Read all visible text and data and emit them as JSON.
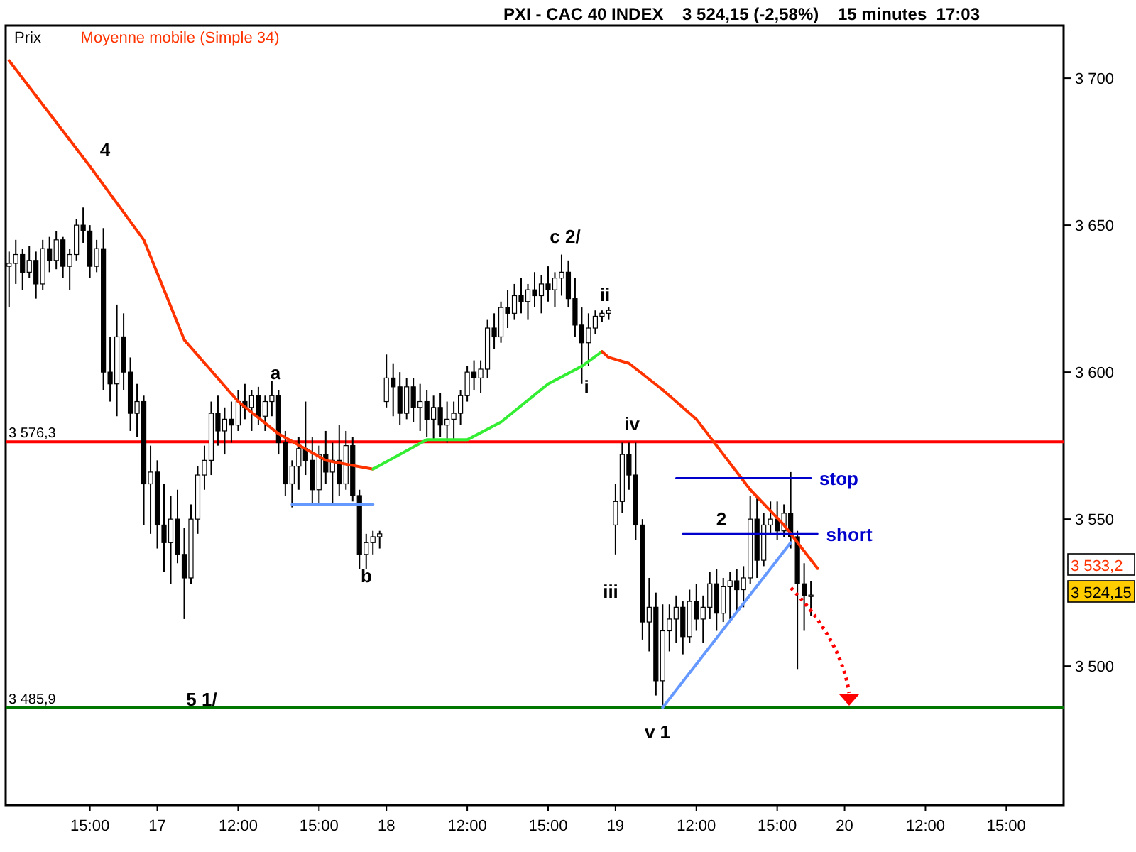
{
  "chart_data": {
    "type": "candlestick",
    "title": "PXI - CAC 40 INDEX    3 524,15 (-2,58%)    15 minutes  17:03",
    "legend": "top left",
    "categories": [
      null,
      null,
      null,
      null,
      null,
      null,
      null,
      null,
      null,
      null,
      null,
      null,
      "15:00",
      null,
      null,
      null,
      null,
      null,
      null,
      null,
      null,
      null,
      "17",
      null,
      null,
      null,
      null,
      null,
      null,
      null,
      null,
      null,
      null,
      null,
      "12:00",
      null,
      null,
      null,
      null,
      null,
      null,
      null,
      null,
      null,
      null,
      null,
      "15:00",
      null,
      null,
      null,
      null,
      null,
      null,
      null,
      null,
      null,
      "18",
      null,
      null,
      null,
      null,
      null,
      null,
      null,
      null,
      null,
      null,
      null,
      "12:00",
      null,
      null,
      null,
      null,
      null,
      null,
      null,
      null,
      null,
      null,
      null,
      "15:00",
      null,
      null,
      null,
      null,
      null,
      null,
      null,
      null,
      null,
      "19",
      null,
      null,
      null,
      null,
      null,
      null,
      null,
      null,
      null,
      null,
      null,
      "12:00",
      null,
      null,
      null,
      null,
      null,
      null,
      null,
      null,
      null,
      null,
      null,
      "15:00",
      null,
      null,
      null,
      null,
      null,
      null,
      null,
      null,
      null,
      "20",
      null,
      null,
      null,
      null,
      null,
      null,
      null,
      null,
      null,
      null,
      null,
      "12:00",
      null,
      null,
      null,
      null,
      null,
      null,
      null,
      null,
      null,
      null,
      null,
      "15:00",
      null,
      null,
      null,
      null,
      null,
      null,
      null,
      null
    ],
    "ylim": [
      3452.7,
      3717.9
    ],
    "yticks": [
      {
        "value": 3500,
        "label": "3 500"
      },
      {
        "value": 3550,
        "label": "3 550"
      },
      {
        "value": 3600,
        "label": "3 600"
      },
      {
        "value": 3650,
        "label": "3 650"
      },
      {
        "value": 3700,
        "label": "3 700"
      }
    ],
    "ref_lines": [
      {
        "axis": "y",
        "value": 3576.3,
        "label": "3 576,3",
        "color": "#ff0000"
      },
      {
        "axis": "y",
        "value": 3485.9,
        "label": "3 485,9",
        "color": "#007700"
      }
    ],
    "series": [
      {
        "name": "Prix",
        "color": "#000000",
        "ohlc": [
          [
            3636,
            3641,
            3622,
            3637
          ],
          [
            3637,
            3645,
            3630,
            3640
          ],
          [
            3640,
            3642,
            3628,
            3634
          ],
          [
            3634,
            3643,
            3632,
            3638
          ],
          [
            3638,
            3641,
            3625,
            3630
          ],
          [
            3630,
            3645,
            3628,
            3642
          ],
          [
            3642,
            3646,
            3634,
            3638
          ],
          [
            3638,
            3648,
            3635,
            3645
          ],
          [
            3645,
            3646,
            3632,
            3636
          ],
          [
            3636,
            3642,
            3628,
            3640
          ],
          [
            3640,
            3652,
            3638,
            3650
          ],
          [
            3650,
            3656,
            3644,
            3648
          ],
          [
            3648,
            3650,
            3632,
            3636
          ],
          [
            3636,
            3645,
            3634,
            3642
          ],
          [
            3642,
            3649,
            3594,
            3600
          ],
          [
            3600,
            3612,
            3590,
            3596
          ],
          [
            3596,
            3623,
            3585,
            3612
          ],
          [
            3612,
            3620,
            3594,
            3600
          ],
          [
            3600,
            3605,
            3580,
            3586
          ],
          [
            3586,
            3596,
            3578,
            3590
          ],
          [
            3590,
            3592,
            3548,
            3562
          ],
          [
            3562,
            3575,
            3545,
            3566
          ],
          [
            3566,
            3570,
            3540,
            3548
          ],
          [
            3548,
            3562,
            3532,
            3542
          ],
          [
            3542,
            3558,
            3528,
            3550
          ],
          [
            3550,
            3560,
            3535,
            3538
          ],
          [
            3538,
            3547,
            3516,
            3530
          ],
          [
            3530,
            3555,
            3528,
            3550
          ],
          [
            3550,
            3568,
            3545,
            3565
          ],
          [
            3565,
            3575,
            3560,
            3570
          ],
          [
            3570,
            3590,
            3565,
            3586
          ],
          [
            3586,
            3592,
            3575,
            3580
          ],
          [
            3580,
            3588,
            3572,
            3584
          ],
          [
            3584,
            3590,
            3576,
            3582
          ],
          [
            3582,
            3594,
            3580,
            3590
          ],
          [
            3590,
            3596,
            3584,
            3588
          ],
          [
            3588,
            3594,
            3580,
            3592
          ],
          [
            3592,
            3595,
            3582,
            3585
          ],
          [
            3585,
            3592,
            3580,
            3590
          ],
          [
            3590,
            3597,
            3585,
            3592
          ],
          [
            3592,
            3594,
            3572,
            3576
          ],
          [
            3576,
            3580,
            3558,
            3562
          ],
          [
            3562,
            3570,
            3554,
            3568
          ],
          [
            3568,
            3578,
            3560,
            3574
          ],
          [
            3574,
            3590,
            3565,
            3570
          ],
          [
            3570,
            3578,
            3555,
            3560
          ],
          [
            3560,
            3575,
            3555,
            3572
          ],
          [
            3572,
            3580,
            3562,
            3566
          ],
          [
            3566,
            3576,
            3555,
            3570
          ],
          [
            3570,
            3582,
            3558,
            3562
          ],
          [
            3562,
            3580,
            3560,
            3575
          ],
          [
            3575,
            3578,
            3556,
            3558
          ],
          [
            3558,
            3560,
            3533,
            3538
          ],
          [
            3538,
            3545,
            3533,
            3542
          ],
          [
            3542,
            3546,
            3538,
            3544
          ],
          [
            3544,
            3546,
            3540,
            3545
          ],
          [
            3590,
            3606,
            3588,
            3598
          ],
          [
            3598,
            3603,
            3585,
            3595
          ],
          [
            3595,
            3600,
            3582,
            3586
          ],
          [
            3586,
            3598,
            3584,
            3595
          ],
          [
            3595,
            3598,
            3583,
            3588
          ],
          [
            3588,
            3596,
            3580,
            3590
          ],
          [
            3590,
            3594,
            3578,
            3584
          ],
          [
            3584,
            3592,
            3577,
            3588
          ],
          [
            3588,
            3593,
            3578,
            3582
          ],
          [
            3582,
            3590,
            3576,
            3584
          ],
          [
            3584,
            3590,
            3577,
            3586
          ],
          [
            3586,
            3594,
            3582,
            3592
          ],
          [
            3592,
            3602,
            3590,
            3600
          ],
          [
            3600,
            3604,
            3594,
            3598
          ],
          [
            3598,
            3604,
            3593,
            3601
          ],
          [
            3601,
            3618,
            3598,
            3615
          ],
          [
            3615,
            3620,
            3608,
            3612
          ],
          [
            3612,
            3624,
            3610,
            3622
          ],
          [
            3622,
            3628,
            3615,
            3620
          ],
          [
            3620,
            3630,
            3618,
            3626
          ],
          [
            3626,
            3632,
            3620,
            3624
          ],
          [
            3624,
            3630,
            3618,
            3628
          ],
          [
            3628,
            3634,
            3622,
            3626
          ],
          [
            3626,
            3633,
            3620,
            3630
          ],
          [
            3630,
            3636,
            3624,
            3628
          ],
          [
            3628,
            3634,
            3622,
            3632
          ],
          [
            3632,
            3640,
            3626,
            3634
          ],
          [
            3634,
            3638,
            3622,
            3625
          ],
          [
            3625,
            3632,
            3612,
            3616
          ],
          [
            3616,
            3622,
            3596,
            3610
          ],
          [
            3610,
            3620,
            3602,
            3615
          ],
          [
            3615,
            3621,
            3613,
            3619
          ],
          [
            3619,
            3621,
            3617,
            3620
          ],
          [
            3620,
            3622,
            3618,
            3621
          ],
          [
            3548,
            3562,
            3538,
            3556
          ],
          [
            3556,
            3576,
            3552,
            3572
          ],
          [
            3572,
            3576,
            3560,
            3565
          ],
          [
            3565,
            3576,
            3543,
            3548
          ],
          [
            3548,
            3550,
            3509,
            3515
          ],
          [
            3515,
            3530,
            3505,
            3520
          ],
          [
            3520,
            3525,
            3490,
            3495
          ],
          [
            3495,
            3521,
            3486,
            3512
          ],
          [
            3512,
            3521,
            3505,
            3516
          ],
          [
            3516,
            3524,
            3508,
            3520
          ],
          [
            3520,
            3522,
            3504,
            3510
          ],
          [
            3510,
            3526,
            3508,
            3522
          ],
          [
            3522,
            3528,
            3512,
            3516
          ],
          [
            3516,
            3524,
            3508,
            3520
          ],
          [
            3520,
            3532,
            3516,
            3528
          ],
          [
            3528,
            3533,
            3512,
            3518
          ],
          [
            3518,
            3530,
            3515,
            3527
          ],
          [
            3527,
            3532,
            3516,
            3529
          ],
          [
            3529,
            3533,
            3518,
            3526
          ],
          [
            3526,
            3534,
            3520,
            3530
          ],
          [
            3530,
            3558,
            3528,
            3550
          ],
          [
            3550,
            3557,
            3530,
            3536
          ],
          [
            3536,
            3552,
            3534,
            3548
          ],
          [
            3548,
            3556,
            3545,
            3550
          ],
          [
            3550,
            3556,
            3543,
            3546
          ],
          [
            3546,
            3555,
            3544,
            3552
          ],
          [
            3552,
            3566,
            3540,
            3544
          ],
          [
            3544,
            3546,
            3499,
            3528
          ],
          [
            3528,
            3535,
            3512,
            3524
          ],
          [
            3524,
            3529,
            3517,
            3524.15
          ],
          null,
          null,
          null,
          null,
          null,
          null,
          null,
          null,
          null,
          null,
          null,
          null,
          null,
          null,
          null,
          null,
          null,
          null,
          null,
          null,
          null,
          null,
          null,
          null,
          null,
          null,
          null,
          null,
          null,
          null,
          null,
          null,
          null,
          null,
          null,
          null,
          null
        ]
      },
      {
        "name": "Moyenne mobile (Simple 34)",
        "type": "line",
        "color": "#ff3300",
        "values": [
          3706,
          null,
          null,
          null,
          null,
          null,
          null,
          null,
          null,
          null,
          null,
          null,
          3670,
          null,
          null,
          null,
          null,
          null,
          null,
          null,
          3645,
          null,
          null,
          null,
          null,
          null,
          3611,
          null,
          null,
          null,
          null,
          null,
          null,
          null,
          3590,
          null,
          null,
          null,
          null,
          null,
          3579,
          null,
          null,
          null,
          null,
          null,
          null,
          3570,
          null,
          null,
          null,
          null,
          null,
          null,
          3567,
          null,
          null,
          null,
          null,
          null,
          null,
          null,
          null,
          null,
          null,
          null,
          null,
          null,
          null,
          null,
          null,
          null,
          null,
          null,
          null,
          null,
          null,
          null,
          null,
          null,
          null,
          null,
          null,
          null,
          null,
          null,
          null,
          null,
          null,
          null,
          null,
          null,
          null,
          null,
          null,
          null,
          null,
          null,
          null,
          null,
          null,
          null,
          null,
          null,
          null,
          null,
          null,
          null,
          null,
          null,
          null,
          null,
          null,
          null,
          null,
          null,
          null,
          null,
          null,
          null,
          null,
          null,
          null,
          null,
          null,
          null,
          null,
          null,
          null,
          null,
          null,
          null,
          null,
          null,
          null,
          null,
          null,
          null,
          null,
          null,
          null,
          null,
          null,
          null,
          null,
          null,
          null,
          null,
          null,
          null,
          null,
          null,
          null,
          null,
          null,
          null,
          null
        ]
      },
      {
        "type": "line",
        "color": "#33ee33",
        "values": [
          null,
          null,
          null,
          null,
          null,
          null,
          null,
          null,
          null,
          null,
          null,
          null,
          null,
          null,
          null,
          null,
          null,
          null,
          null,
          null,
          null,
          null,
          null,
          null,
          null,
          null,
          null,
          null,
          null,
          null,
          null,
          null,
          null,
          null,
          null,
          null,
          null,
          null,
          null,
          null,
          null,
          null,
          null,
          null,
          null,
          null,
          null,
          null,
          null,
          null,
          null,
          null,
          null,
          null,
          3567,
          null,
          null,
          null,
          null,
          null,
          null,
          null,
          3577,
          null,
          null,
          null,
          null,
          null,
          3577,
          null,
          null,
          null,
          null,
          3583,
          null,
          null,
          null,
          null,
          null,
          null,
          3596,
          null,
          null,
          null,
          null,
          3602,
          null,
          null,
          3607,
          null,
          null,
          null,
          null,
          null,
          null,
          null,
          null,
          null,
          null,
          null,
          null,
          null,
          null,
          null,
          null,
          null,
          null,
          null,
          null,
          null,
          null,
          null,
          null,
          null,
          null,
          null,
          null,
          null,
          null,
          null,
          null,
          null,
          null,
          null,
          null,
          null,
          null,
          null,
          null,
          null,
          null,
          null,
          null,
          null,
          null,
          null,
          null,
          null,
          null,
          null,
          null,
          null,
          null,
          null,
          null,
          null,
          null,
          null,
          null,
          null,
          null,
          null,
          null,
          null,
          null,
          null,
          null
        ]
      },
      {
        "type": "line",
        "color": "#ff3300",
        "values": [
          null,
          null,
          null,
          null,
          null,
          null,
          null,
          null,
          null,
          null,
          null,
          null,
          null,
          null,
          null,
          null,
          null,
          null,
          null,
          null,
          null,
          null,
          null,
          null,
          null,
          null,
          null,
          null,
          null,
          null,
          null,
          null,
          null,
          null,
          null,
          null,
          null,
          null,
          null,
          null,
          null,
          null,
          null,
          null,
          null,
          null,
          null,
          null,
          null,
          null,
          null,
          null,
          null,
          null,
          null,
          null,
          null,
          null,
          null,
          null,
          null,
          null,
          null,
          null,
          null,
          null,
          null,
          null,
          null,
          null,
          null,
          null,
          null,
          null,
          null,
          null,
          null,
          null,
          null,
          null,
          null,
          null,
          null,
          null,
          null,
          null,
          null,
          null,
          3607,
          3605,
          null,
          null,
          3603,
          null,
          null,
          null,
          null,
          3594,
          null,
          null,
          null,
          null,
          3584,
          null,
          null,
          null,
          3572,
          null,
          null,
          null,
          3560,
          null,
          null,
          null,
          null,
          3548,
          null,
          null,
          null,
          null,
          3533.2,
          null,
          null,
          null,
          null,
          null,
          null,
          null,
          null,
          null,
          null,
          null,
          null,
          null,
          null,
          null,
          null,
          null,
          null,
          null,
          null,
          null,
          null,
          null,
          null,
          null,
          null,
          null,
          null,
          null,
          null,
          null,
          null,
          null,
          null,
          null,
          null
        ]
      },
      {
        "type": "line",
        "color": "#6699ff",
        "values": [
          null,
          null,
          null,
          null,
          null,
          null,
          null,
          null,
          null,
          null,
          null,
          null,
          null,
          null,
          null,
          null,
          null,
          null,
          null,
          null,
          null,
          null,
          null,
          null,
          null,
          null,
          null,
          null,
          null,
          null,
          null,
          null,
          null,
          null,
          null,
          null,
          null,
          null,
          null,
          null,
          null,
          null,
          3555,
          null,
          null,
          null,
          null,
          null,
          null,
          null,
          null,
          null,
          null,
          null,
          3555,
          null,
          null,
          null,
          null,
          null,
          null,
          null,
          null,
          null,
          null,
          null,
          null,
          null,
          null,
          null,
          null,
          null,
          null,
          null,
          null,
          null,
          null,
          null,
          null,
          null,
          null,
          null,
          null,
          null,
          null,
          null,
          null,
          null,
          null,
          null,
          null,
          null,
          null,
          null,
          null,
          null,
          null,
          null,
          null,
          null,
          null,
          null,
          null,
          null,
          null,
          null,
          null,
          null,
          null,
          null,
          null,
          null,
          null,
          null,
          null,
          null,
          null,
          null,
          null,
          null,
          null,
          null,
          null,
          null,
          null,
          null,
          null,
          null,
          null,
          null,
          null,
          null,
          null,
          null,
          null,
          null,
          null,
          null,
          null,
          null,
          null,
          null,
          null,
          null,
          null,
          null,
          null,
          null,
          null,
          null,
          null,
          null,
          null,
          null,
          null,
          null,
          null
        ]
      },
      {
        "type": "line",
        "color": "#6699ff",
        "values": [
          null,
          null,
          null,
          null,
          null,
          null,
          null,
          null,
          null,
          null,
          null,
          null,
          null,
          null,
          null,
          null,
          null,
          null,
          null,
          null,
          null,
          null,
          null,
          null,
          null,
          null,
          null,
          null,
          null,
          null,
          null,
          null,
          null,
          null,
          null,
          null,
          null,
          null,
          null,
          null,
          null,
          null,
          null,
          null,
          null,
          null,
          null,
          null,
          null,
          null,
          null,
          null,
          null,
          null,
          null,
          null,
          null,
          null,
          null,
          null,
          null,
          null,
          null,
          null,
          null,
          null,
          null,
          null,
          null,
          null,
          null,
          null,
          null,
          null,
          null,
          null,
          null,
          null,
          null,
          null,
          null,
          null,
          null,
          null,
          null,
          null,
          null,
          null,
          null,
          null,
          null,
          null,
          null,
          null,
          null,
          null,
          null,
          3485.9,
          null,
          null,
          null,
          null,
          null,
          null,
          null,
          null,
          null,
          null,
          null,
          null,
          null,
          null,
          null,
          null,
          null,
          null,
          3542,
          null,
          null,
          null,
          null,
          null,
          null,
          null,
          null,
          null,
          null,
          null,
          null,
          null,
          null,
          null,
          null,
          null,
          null,
          null,
          null,
          null,
          null,
          null,
          null,
          null,
          null,
          null,
          null,
          null,
          null,
          null,
          null,
          null,
          null,
          null,
          null,
          null,
          null,
          null,
          null
        ]
      },
      {
        "name": "stop",
        "type": "line",
        "color": "#0000cc",
        "values": [
          null,
          null,
          null,
          null,
          null,
          null,
          null,
          null,
          null,
          null,
          null,
          null,
          null,
          null,
          null,
          null,
          null,
          null,
          null,
          null,
          null,
          null,
          null,
          null,
          null,
          null,
          null,
          null,
          null,
          null,
          null,
          null,
          null,
          null,
          null,
          null,
          null,
          null,
          null,
          null,
          null,
          null,
          null,
          null,
          null,
          null,
          null,
          null,
          null,
          null,
          null,
          null,
          null,
          null,
          null,
          null,
          null,
          null,
          null,
          null,
          null,
          null,
          null,
          null,
          null,
          null,
          null,
          null,
          null,
          null,
          null,
          null,
          null,
          null,
          null,
          null,
          null,
          null,
          null,
          null,
          null,
          null,
          null,
          null,
          null,
          null,
          null,
          null,
          null,
          null,
          null,
          null,
          null,
          null,
          null,
          null,
          null,
          null,
          null,
          3564,
          null,
          null,
          null,
          null,
          null,
          null,
          null,
          null,
          null,
          null,
          null,
          null,
          null,
          null,
          null,
          null,
          null,
          null,
          null,
          3564,
          null,
          null,
          null,
          null,
          null,
          null,
          null,
          null,
          null,
          null,
          null,
          null,
          null,
          null,
          null,
          null,
          null,
          null,
          null,
          null,
          null,
          null,
          null,
          null,
          null,
          null,
          null,
          null,
          null,
          null,
          null,
          null,
          null,
          null,
          null,
          null,
          null
        ]
      },
      {
        "name": "short",
        "type": "line",
        "color": "#0000cc",
        "values": [
          null,
          null,
          null,
          null,
          null,
          null,
          null,
          null,
          null,
          null,
          null,
          null,
          null,
          null,
          null,
          null,
          null,
          null,
          null,
          null,
          null,
          null,
          null,
          null,
          null,
          null,
          null,
          null,
          null,
          null,
          null,
          null,
          null,
          null,
          null,
          null,
          null,
          null,
          null,
          null,
          null,
          null,
          null,
          null,
          null,
          null,
          null,
          null,
          null,
          null,
          null,
          null,
          null,
          null,
          null,
          null,
          null,
          null,
          null,
          null,
          null,
          null,
          null,
          null,
          null,
          null,
          null,
          null,
          null,
          null,
          null,
          null,
          null,
          null,
          null,
          null,
          null,
          null,
          null,
          null,
          null,
          null,
          null,
          null,
          null,
          null,
          null,
          null,
          null,
          null,
          null,
          null,
          null,
          null,
          null,
          null,
          null,
          null,
          null,
          null,
          3545,
          null,
          null,
          null,
          null,
          null,
          null,
          null,
          null,
          null,
          null,
          null,
          null,
          null,
          null,
          null,
          null,
          null,
          null,
          null,
          3545,
          null,
          null,
          null,
          null,
          null,
          null,
          null,
          null,
          null,
          null,
          null,
          null,
          null,
          null,
          null,
          null,
          null,
          null,
          null,
          null,
          null,
          null,
          null,
          null,
          null,
          null,
          null,
          null,
          null,
          null,
          null,
          null,
          null,
          null,
          null,
          null
        ]
      }
    ],
    "annotations": [
      "4",
      "a",
      "b",
      "5 1/",
      "c 2/",
      "ii",
      "i",
      "iii",
      "iv",
      "v 1",
      "2",
      "3 533,2",
      "3 524,15"
    ]
  }
}
